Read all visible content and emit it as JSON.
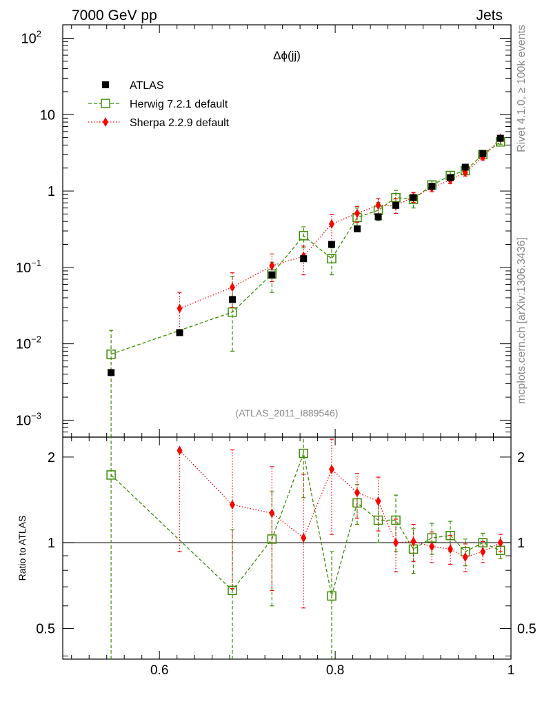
{
  "header": {
    "left": "7000 GeV pp",
    "right": "Jets"
  },
  "side_texts": {
    "rivet": "Rivet 4.1.0, ≥ 100k events",
    "mcplots": "mcplots.cern.ch [arXiv:1306.3436]"
  },
  "chart_data": [
    {
      "type": "scatter",
      "panel": "main",
      "title": "Δϕ(jj)",
      "watermark": "(ATLAS_2011_I889546)",
      "yscale": "log",
      "xlim": [
        0.49,
        1.0
      ],
      "ylim": [
        0.0006,
        150
      ],
      "yticks": [
        {
          "value": 100,
          "base": "10",
          "exp": "2"
        },
        {
          "value": 10,
          "base": "10",
          "exp": ""
        },
        {
          "value": 1,
          "base": "1",
          "exp": ""
        },
        {
          "value": 0.1,
          "base": "10",
          "exp": "−1"
        },
        {
          "value": 0.01,
          "base": "10",
          "exp": "−2"
        },
        {
          "value": 0.001,
          "base": "10",
          "exp": "−3"
        }
      ],
      "legend": [
        {
          "name": "ATLAS",
          "color": "#000000",
          "marker": "square-filled"
        },
        {
          "name": "Herwig 7.2.1 default",
          "color": "#3a8c00",
          "marker": "square-open",
          "line": "dashed"
        },
        {
          "name": "Sherpa 2.2.9 default",
          "color": "#ff0000",
          "marker": "diamond-filled",
          "line": "dotted"
        }
      ],
      "series": [
        {
          "name": "ATLAS",
          "x": [
            0.545,
            0.623,
            0.683,
            0.728,
            0.764,
            0.796,
            0.825,
            0.849,
            0.869,
            0.889,
            0.91,
            0.931,
            0.948,
            0.968,
            0.988
          ],
          "y": [
            0.0042,
            0.014,
            0.038,
            0.08,
            0.13,
            0.2,
            0.32,
            0.46,
            0.65,
            0.82,
            1.15,
            1.5,
            2.05,
            3.1,
            4.9
          ]
        },
        {
          "name": "Herwig 7.2.1 default",
          "x": [
            0.545,
            0.683,
            0.728,
            0.764,
            0.796,
            0.825,
            0.849,
            0.869,
            0.889,
            0.91,
            0.931,
            0.948,
            0.968,
            0.988
          ],
          "y": [
            0.0073,
            0.026,
            0.082,
            0.26,
            0.13,
            0.45,
            0.56,
            0.82,
            0.78,
            1.2,
            1.6,
            1.85,
            3.0,
            4.4
          ],
          "err_lo": [
            0.0073,
            0.018,
            0.035,
            0.08,
            0.05,
            0.15,
            0.15,
            0.2,
            0.18,
            0.15,
            0.2,
            0.2,
            0.2,
            0.3
          ],
          "err_hi": [
            0.0077,
            0.05,
            0.035,
            0.08,
            0.05,
            0.15,
            0.15,
            0.2,
            0.18,
            0.15,
            0.2,
            0.2,
            0.2,
            0.3
          ]
        },
        {
          "name": "Sherpa 2.2.9 default",
          "x": [
            0.623,
            0.683,
            0.728,
            0.764,
            0.796,
            0.825,
            0.849,
            0.869,
            0.889,
            0.91,
            0.931,
            0.948,
            0.968,
            0.988
          ],
          "y": [
            0.029,
            0.055,
            0.105,
            0.14,
            0.37,
            0.51,
            0.65,
            0.65,
            0.83,
            1.1,
            1.4,
            1.75,
            2.8,
            4.9
          ],
          "err_lo": [
            0.015,
            0.025,
            0.04,
            0.06,
            0.17,
            0.12,
            0.15,
            0.14,
            0.12,
            0.12,
            0.15,
            0.18,
            0.25,
            0.3
          ],
          "err_hi": [
            0.018,
            0.03,
            0.045,
            0.05,
            0.12,
            0.12,
            0.15,
            0.14,
            0.12,
            0.12,
            0.15,
            0.18,
            0.25,
            0.3
          ]
        }
      ]
    },
    {
      "type": "scatter",
      "panel": "ratio",
      "ylabel": "Ratio to ATLAS",
      "yscale": "log",
      "xlim": [
        0.49,
        1.0
      ],
      "ylim": [
        0.39,
        2.35
      ],
      "reference_line": 1,
      "yticks": [
        {
          "value": 2,
          "label": "2"
        },
        {
          "value": 1,
          "label": "1"
        },
        {
          "value": 0.5,
          "label": "0.5"
        }
      ],
      "xticks": [
        {
          "value": 0.6,
          "label": "0.6"
        },
        {
          "value": 0.8,
          "label": "0.8"
        },
        {
          "value": 1.0,
          "label": "1"
        }
      ],
      "series": [
        {
          "name": "Herwig 7.2.1 default",
          "x": [
            0.545,
            0.683,
            0.728,
            0.764,
            0.796,
            0.825,
            0.849,
            0.869,
            0.889,
            0.91,
            0.931,
            0.948,
            0.968,
            0.988
          ],
          "y": [
            1.73,
            0.68,
            1.03,
            2.06,
            0.65,
            1.38,
            1.2,
            1.2,
            0.95,
            1.04,
            1.06,
            0.93,
            1.0,
            0.94
          ],
          "err_lo": [
            1.4,
            0.38,
            0.43,
            0.62,
            0.28,
            0.22,
            0.2,
            0.27,
            0.17,
            0.13,
            0.13,
            0.1,
            0.08,
            0.06
          ],
          "err_hi": [
            1.3,
            0.43,
            0.48,
            0.62,
            0.28,
            0.22,
            0.2,
            0.27,
            0.17,
            0.13,
            0.13,
            0.1,
            0.08,
            0.06
          ]
        },
        {
          "name": "Sherpa 2.2.9 default",
          "x": [
            0.623,
            0.683,
            0.728,
            0.764,
            0.796,
            0.825,
            0.849,
            0.869,
            0.889,
            0.91,
            0.931,
            0.948,
            0.968,
            0.988
          ],
          "y": [
            2.11,
            1.36,
            1.27,
            1.04,
            1.81,
            1.5,
            1.4,
            1.0,
            1.01,
            0.97,
            0.95,
            0.89,
            0.93,
            1.0
          ],
          "err_lo": [
            1.18,
            0.67,
            0.59,
            0.45,
            0.74,
            0.28,
            0.3,
            0.21,
            0.15,
            0.12,
            0.11,
            0.1,
            0.08,
            0.07
          ],
          "err_hi": [
            0.0,
            0.76,
            0.58,
            0.7,
            0.5,
            0.25,
            0.3,
            0.21,
            0.15,
            0.12,
            0.11,
            0.1,
            0.08,
            0.07
          ]
        }
      ]
    }
  ]
}
